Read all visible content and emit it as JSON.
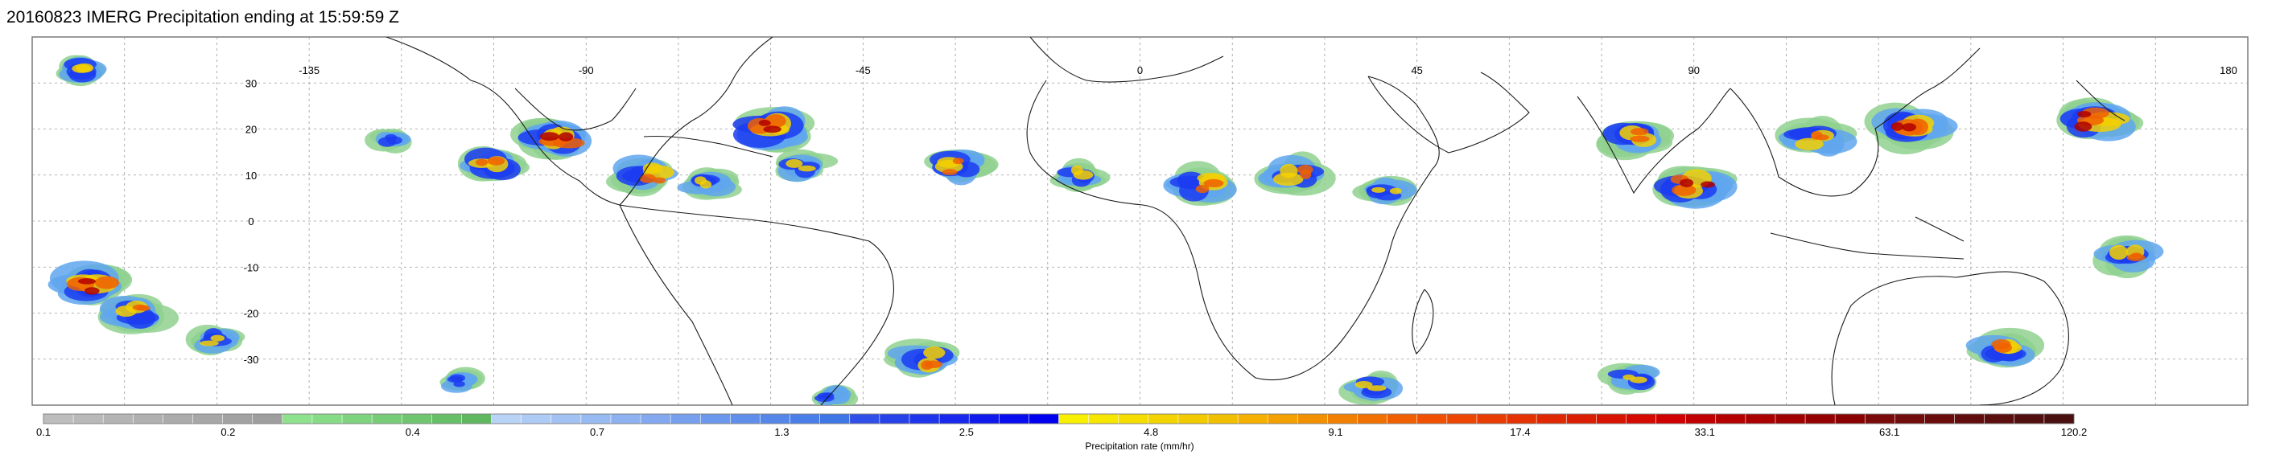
{
  "title": "20160823 IMERG Precipitation ending at 15:59:59 Z",
  "map": {
    "lon_range": [
      -180,
      180
    ],
    "lat_range": [
      -40,
      40
    ],
    "lon_labels": [
      "-135",
      "-90",
      "-45",
      "0",
      "45",
      "90",
      "180"
    ],
    "lat_labels": [
      "30",
      "20",
      "10",
      "0",
      "-10",
      "-20",
      "-30"
    ],
    "gridlines": true
  },
  "colorbar": {
    "label": "Precipitation rate (mm/hr)",
    "tick_labels": [
      "0.1",
      "0.2",
      "0.4",
      "0.7",
      "1.3",
      "2.5",
      "4.8",
      "9.1",
      "17.4",
      "33.1",
      "63.1",
      "120.2"
    ],
    "groups": [
      {
        "from": "#bdbdbd",
        "to": "#9e9e9e",
        "count": 8
      },
      {
        "from": "#8ee28e",
        "to": "#5fb85f",
        "count": 7
      },
      {
        "from": "#b9d3f7",
        "to": "#3f76e6",
        "count": 12
      },
      {
        "from": "#2f4fe8",
        "to": "#0000f0",
        "count": 7
      },
      {
        "from": "#f8f000",
        "to": "#f0c000",
        "count": 6
      },
      {
        "from": "#f5b000",
        "to": "#f06000",
        "count": 6
      },
      {
        "from": "#f05000",
        "to": "#d00000",
        "count": 9
      },
      {
        "from": "#c00000",
        "to": "#8a0000",
        "count": 6
      },
      {
        "from": "#7a0a0a",
        "to": "#4a1010",
        "count": 7
      }
    ]
  },
  "rain_clusters": [
    {
      "lon": -170,
      "lat": -14,
      "intensity": 5
    },
    {
      "lon": -163,
      "lat": -20,
      "intensity": 4
    },
    {
      "lon": -172,
      "lat": 33,
      "intensity": 3
    },
    {
      "lon": -150,
      "lat": -26,
      "intensity": 3
    },
    {
      "lon": -122,
      "lat": 18,
      "intensity": 2
    },
    {
      "lon": -105,
      "lat": 12,
      "intensity": 4
    },
    {
      "lon": -95,
      "lat": 18,
      "intensity": 5
    },
    {
      "lon": -80,
      "lat": 10,
      "intensity": 4
    },
    {
      "lon": -70,
      "lat": 8,
      "intensity": 3
    },
    {
      "lon": -60,
      "lat": 20,
      "intensity": 5
    },
    {
      "lon": -55,
      "lat": 12,
      "intensity": 3
    },
    {
      "lon": -30,
      "lat": 12,
      "intensity": 4
    },
    {
      "lon": -10,
      "lat": 10,
      "intensity": 3
    },
    {
      "lon": 10,
      "lat": 8,
      "intensity": 4
    },
    {
      "lon": 25,
      "lat": 10,
      "intensity": 4
    },
    {
      "lon": 40,
      "lat": 6,
      "intensity": 3
    },
    {
      "lon": 80,
      "lat": 18,
      "intensity": 4
    },
    {
      "lon": 90,
      "lat": 8,
      "intensity": 5
    },
    {
      "lon": 110,
      "lat": 18,
      "intensity": 4
    },
    {
      "lon": 125,
      "lat": 20,
      "intensity": 5
    },
    {
      "lon": 155,
      "lat": 22,
      "intensity": 5
    },
    {
      "lon": 160,
      "lat": -8,
      "intensity": 4
    },
    {
      "lon": 140,
      "lat": -28,
      "intensity": 4
    },
    {
      "lon": -35,
      "lat": -30,
      "intensity": 4
    },
    {
      "lon": 38,
      "lat": -36,
      "intensity": 3
    },
    {
      "lon": 80,
      "lat": -34,
      "intensity": 3
    },
    {
      "lon": -110,
      "lat": -35,
      "intensity": 2
    },
    {
      "lon": -50,
      "lat": -38,
      "intensity": 2
    }
  ]
}
